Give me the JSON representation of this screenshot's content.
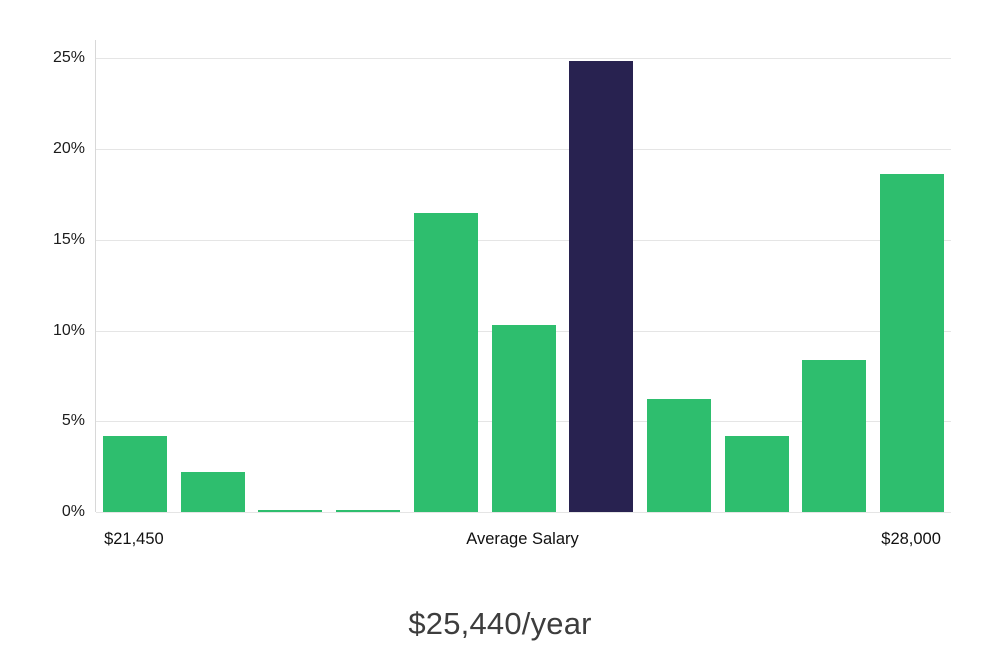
{
  "chart_data": {
    "type": "bar",
    "title": "$25,440/year",
    "values": [
      4.2,
      2.2,
      0.12,
      0.12,
      16.5,
      10.3,
      24.85,
      6.25,
      4.2,
      8.4,
      18.6
    ],
    "highlight_index": 6,
    "colors": {
      "bar": "#2EBE6E",
      "highlight_bar": "#282250",
      "gridline": "#e5e5e5",
      "axis_line": "#d8d8d8"
    },
    "y_ticks": [
      0,
      5,
      10,
      15,
      20,
      25
    ],
    "y_tick_labels": [
      "0%",
      "5%",
      "10%",
      "15%",
      "20%",
      "25%"
    ],
    "ylim": [
      0,
      26
    ],
    "grid": true,
    "legend": false,
    "x_axis_labels": [
      {
        "text": "$21,450",
        "anchor": "first-bar"
      },
      {
        "text": "Average Salary",
        "anchor": "center"
      },
      {
        "text": "$28,000",
        "anchor": "last-bar"
      }
    ]
  }
}
